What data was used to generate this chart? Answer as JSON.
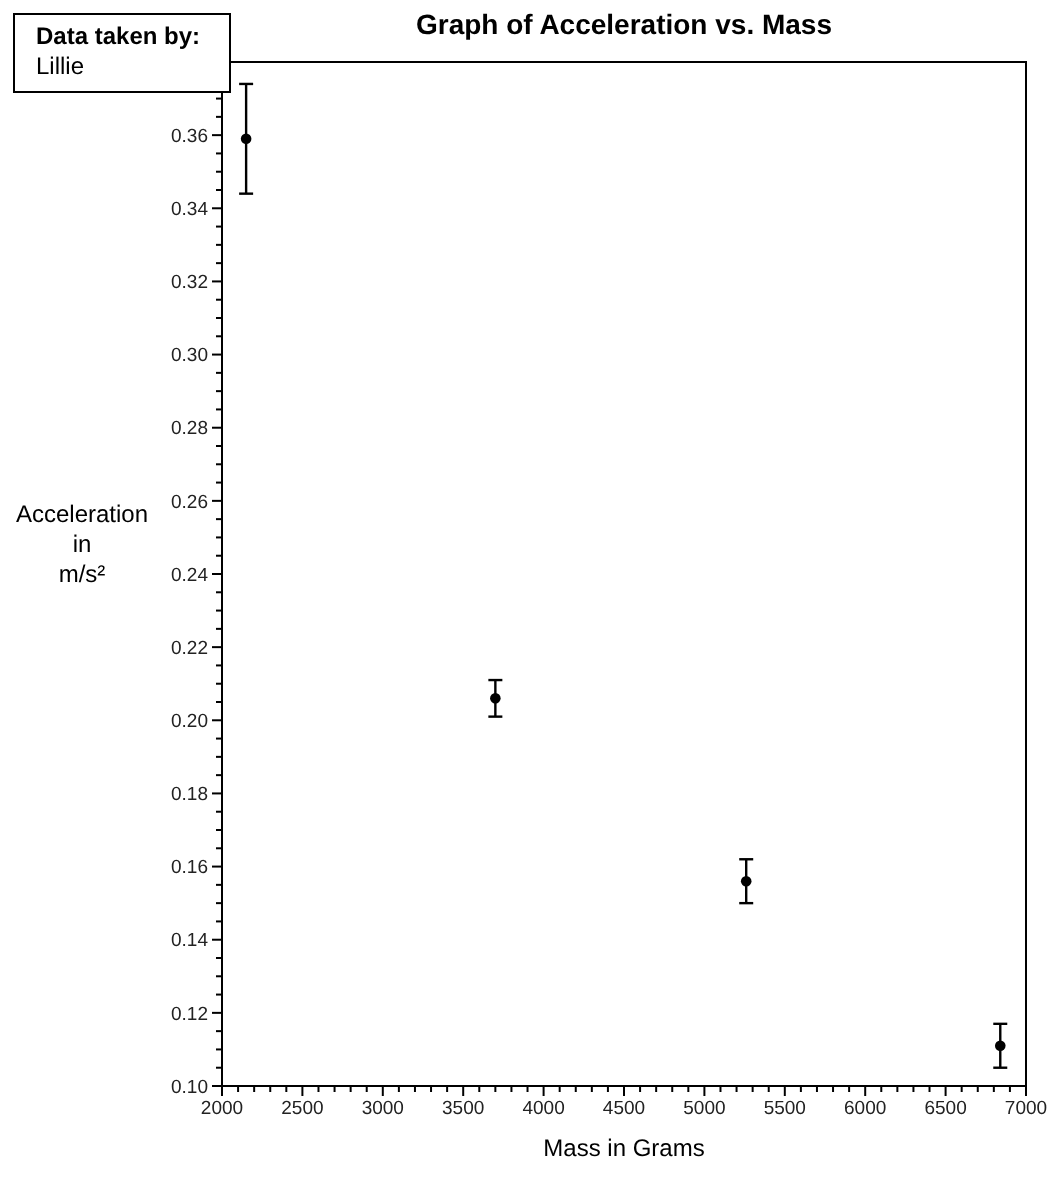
{
  "chart_data": {
    "type": "scatter",
    "title": "Graph of Acceleration vs. Mass",
    "xlabel": "Mass in Grams",
    "ylabel": "Acceleration\nin\nm/s²",
    "annotations": [
      "Data taken by:",
      "Lillie"
    ],
    "x": [
      2150,
      3700,
      5260,
      6840
    ],
    "values": [
      0.359,
      0.206,
      0.156,
      0.111
    ],
    "errors": [
      0.015,
      0.005,
      0.006,
      0.006
    ],
    "color": "#000000",
    "marker": "circle",
    "xlim": [
      2000,
      7000
    ],
    "ylim": [
      0.1,
      0.38
    ],
    "xticks": [
      2000,
      {
        "value": 2100,
        "label": null
      },
      {
        "value": 2200,
        "label": null
      },
      {
        "value": 2300,
        "label": null
      },
      {
        "value": 2400,
        "label": null
      },
      2500,
      {
        "value": 2600,
        "label": null
      },
      {
        "value": 2700,
        "label": null
      },
      {
        "value": 2800,
        "label": null
      },
      {
        "value": 2900,
        "label": null
      },
      3000,
      {
        "value": 3100,
        "label": null
      },
      {
        "value": 3200,
        "label": null
      },
      {
        "value": 3300,
        "label": null
      },
      {
        "value": 3400,
        "label": null
      },
      3500,
      {
        "value": 3600,
        "label": null
      },
      {
        "value": 3700,
        "label": null
      },
      {
        "value": 3800,
        "label": null
      },
      {
        "value": 3900,
        "label": null
      },
      4000,
      {
        "value": 4100,
        "label": null
      },
      {
        "value": 4200,
        "label": null
      },
      {
        "value": 4300,
        "label": null
      },
      {
        "value": 4400,
        "label": null
      },
      4500,
      {
        "value": 4600,
        "label": null
      },
      {
        "value": 4700,
        "label": null
      },
      {
        "value": 4800,
        "label": null
      },
      {
        "value": 4900,
        "label": null
      },
      5000,
      {
        "value": 5100,
        "label": null
      },
      {
        "value": 5200,
        "label": null
      },
      {
        "value": 5300,
        "label": null
      },
      {
        "value": 5400,
        "label": null
      },
      5500,
      {
        "value": 5600,
        "label": null
      },
      {
        "value": 5700,
        "label": null
      },
      {
        "value": 5800,
        "label": null
      },
      {
        "value": 5900,
        "label": null
      },
      6000,
      {
        "value": 6100,
        "label": null
      },
      {
        "value": 6200,
        "label": null
      },
      {
        "value": 6300,
        "label": null
      },
      {
        "value": 6400,
        "label": null
      },
      6500,
      {
        "value": 6600,
        "label": null
      },
      {
        "value": 6700,
        "label": null
      },
      {
        "value": 6800,
        "label": null
      },
      {
        "value": 6900,
        "label": null
      },
      7000
    ],
    "yticks": [
      {
        "value": 0.1,
        "label": "0.10"
      },
      {
        "value": 0.105,
        "label": null
      },
      {
        "value": 0.11,
        "label": null
      },
      {
        "value": 0.115,
        "label": null
      },
      0.12,
      {
        "value": 0.125,
        "label": null
      },
      {
        "value": 0.13,
        "label": null
      },
      {
        "value": 0.135,
        "label": null
      },
      0.14,
      {
        "value": 0.145,
        "label": null
      },
      {
        "value": 0.15,
        "label": null
      },
      {
        "value": 0.155,
        "label": null
      },
      0.16,
      {
        "value": 0.165,
        "label": null
      },
      {
        "value": 0.17,
        "label": null
      },
      {
        "value": 0.175,
        "label": null
      },
      0.18,
      {
        "value": 0.185,
        "label": null
      },
      {
        "value": 0.19,
        "label": null
      },
      {
        "value": 0.195,
        "label": null
      },
      {
        "value": 0.2,
        "label": "0.20"
      },
      {
        "value": 0.205,
        "label": null
      },
      {
        "value": 0.21,
        "label": null
      },
      {
        "value": 0.215,
        "label": null
      },
      0.22,
      {
        "value": 0.225,
        "label": null
      },
      {
        "value": 0.23,
        "label": null
      },
      {
        "value": 0.235,
        "label": null
      },
      0.24,
      {
        "value": 0.245,
        "label": null
      },
      {
        "value": 0.25,
        "label": null
      },
      {
        "value": 0.255,
        "label": null
      },
      0.26,
      {
        "value": 0.265,
        "label": null
      },
      {
        "value": 0.27,
        "label": null
      },
      {
        "value": 0.275,
        "label": null
      },
      0.28,
      {
        "value": 0.285,
        "label": null
      },
      {
        "value": 0.29,
        "label": null
      },
      {
        "value": 0.295,
        "label": null
      },
      {
        "value": 0.3,
        "label": "0.30"
      },
      {
        "value": 0.305,
        "label": null
      },
      {
        "value": 0.31,
        "label": null
      },
      {
        "value": 0.315,
        "label": null
      },
      0.32,
      {
        "value": 0.325,
        "label": null
      },
      {
        "value": 0.33,
        "label": null
      },
      {
        "value": 0.335,
        "label": null
      },
      0.34,
      {
        "value": 0.345,
        "label": null
      },
      {
        "value": 0.35,
        "label": null
      },
      {
        "value": 0.355,
        "label": null
      },
      0.36,
      {
        "value": 0.365,
        "label": null
      },
      {
        "value": 0.37,
        "label": null
      }
    ]
  }
}
